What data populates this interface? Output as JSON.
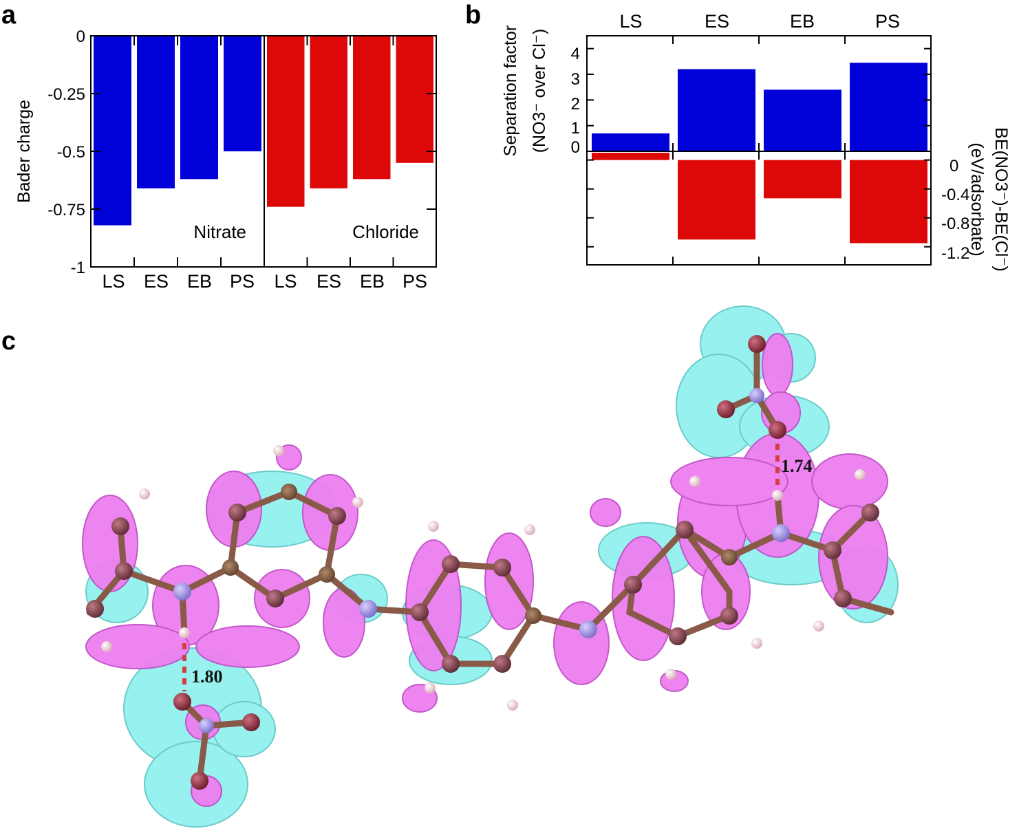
{
  "panel_labels": {
    "a": "a",
    "b": "b",
    "c": "c"
  },
  "panel_a": {
    "ylabel": "Bader charge",
    "yticks": [
      "0",
      "-0.25",
      "-0.5",
      "-0.75",
      "-1"
    ],
    "group_labels": {
      "nitrate": "Nitrate",
      "chloride": "Chloride"
    },
    "categories": [
      "LS",
      "ES",
      "EB",
      "PS"
    ]
  },
  "panel_b": {
    "ylabel_left_line1": "Separation factor",
    "ylabel_left_line2": "(NO3⁻ over Cl⁻)",
    "ylabel_right_line1": "BE(NO3⁻)-BE(Cl⁻)",
    "ylabel_right_line2": "(eV/adsorbate)",
    "top_yticks": [
      "0",
      "1",
      "2",
      "3",
      "4"
    ],
    "bottom_yticks": [
      "0",
      "-0.4",
      "-0.8",
      "-1.2"
    ],
    "categories": [
      "LS",
      "ES",
      "EB",
      "PS"
    ]
  },
  "panel_c": {
    "distance_labels": [
      "1.80",
      "1.74"
    ],
    "colors": {
      "positive_lobe": "#ee7ef0",
      "negative_lobe": "#8ef0ee",
      "carbon": "#8a4a55",
      "nitrogen": "#a898e8",
      "hydrogen": "#f3d6dc",
      "oxygen": "#9c3040",
      "bond": "#8a5a48"
    }
  },
  "chart_data": [
    {
      "type": "bar",
      "title": "",
      "ylabel": "Bader charge",
      "categories": [
        "LS",
        "ES",
        "EB",
        "PS"
      ],
      "ylim": [
        -1,
        0
      ],
      "series": [
        {
          "name": "Nitrate",
          "color": "#0000d8",
          "values": [
            -0.82,
            -0.66,
            -0.62,
            -0.5
          ]
        },
        {
          "name": "Chloride",
          "color": "#dd0808",
          "values": [
            -0.74,
            -0.66,
            -0.62,
            -0.55
          ]
        }
      ]
    },
    {
      "type": "bar",
      "title": "",
      "ylabel": "Separation factor (NO3⁻ over Cl⁻)",
      "categories": [
        "LS",
        "ES",
        "EB",
        "PS"
      ],
      "ylim": [
        0,
        4.5
      ],
      "series": [
        {
          "color": "#0000d8",
          "values": [
            0.7,
            3.2,
            2.4,
            3.45
          ]
        }
      ]
    },
    {
      "type": "bar",
      "title": "",
      "ylabel": "BE(NO3⁻)-BE(Cl⁻) (eV/adsorbate)",
      "categories": [
        "LS",
        "ES",
        "EB",
        "PS"
      ],
      "ylim": [
        -1.45,
        0.12
      ],
      "series": [
        {
          "color": "#dd0808",
          "values": [
            0.1,
            -1.1,
            -0.53,
            -1.15
          ]
        }
      ]
    }
  ]
}
